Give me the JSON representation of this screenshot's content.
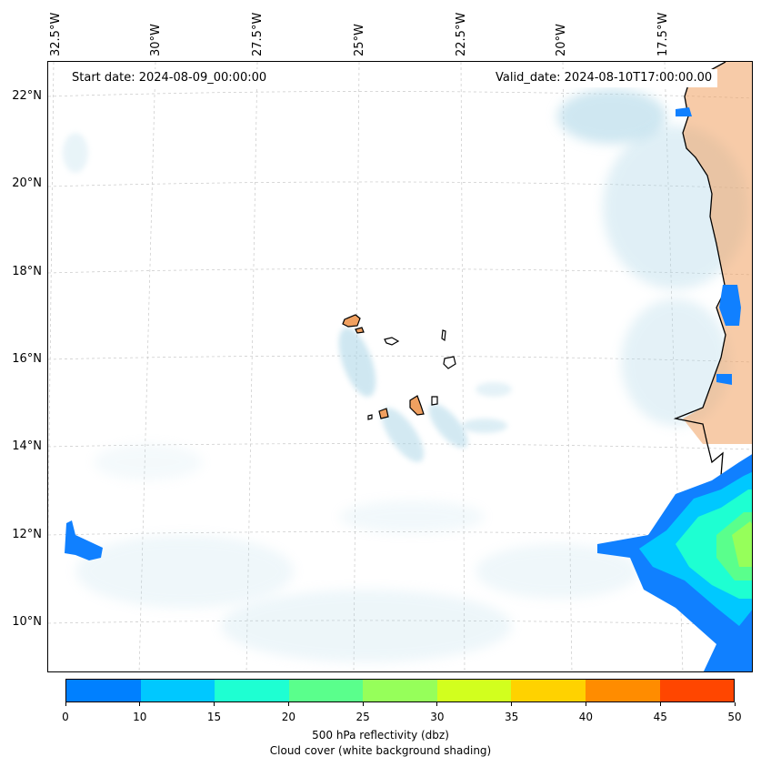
{
  "header": {
    "start_date": "Start date: 2024-08-09_00:00:00",
    "valid_date": "Valid_date: 2024-08-10T17:00:00.00"
  },
  "axes": {
    "lon_labels": [
      "32.5°W",
      "30°W",
      "27.5°W",
      "25°W",
      "22.5°W",
      "20°W",
      "17.5°W"
    ],
    "lat_labels": [
      "22°N",
      "20°N",
      "18°N",
      "16°N",
      "14°N",
      "12°N",
      "10°N"
    ]
  },
  "colorbar": {
    "ticks": [
      "0",
      "10",
      "15",
      "20",
      "25",
      "30",
      "35",
      "40",
      "45",
      "50"
    ],
    "colors": [
      "#0080ff",
      "#00c8ff",
      "#1effd2",
      "#5aff8c",
      "#96ff5a",
      "#d2ff1e",
      "#ffd200",
      "#ff8c00",
      "#ff4600"
    ],
    "label_line1": "500 hPa reflectivity (dbz)",
    "label_line2": "Cloud cover (white background shading)"
  },
  "colors": {
    "cloud": "#a8d4e6",
    "land": "#f0a060",
    "coast": "#000000"
  }
}
